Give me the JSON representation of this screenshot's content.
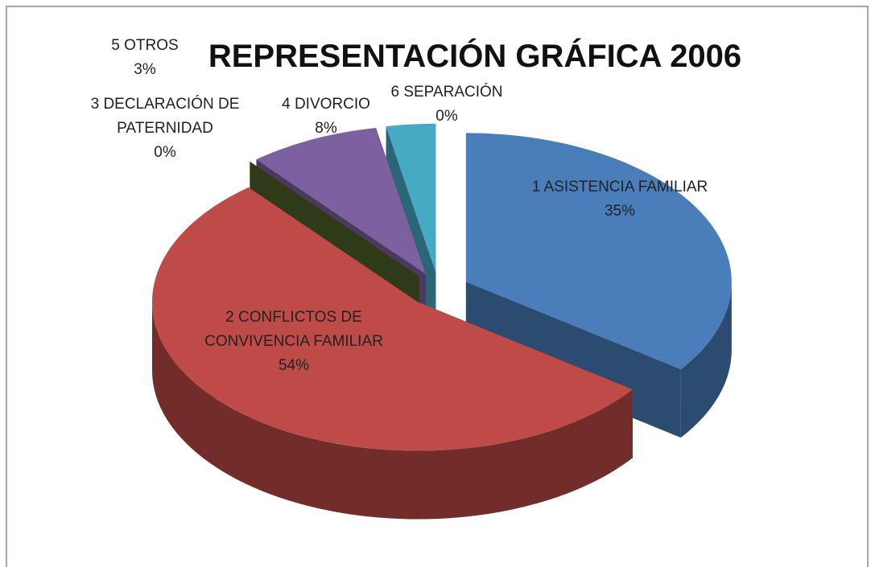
{
  "chart_data": {
    "type": "pie3d",
    "title": "REPRESENTACIÓN GRÁFICA 2006",
    "categories": [
      "1 ASISTENCIA FAMILIAR",
      "2 CONFLICTOS DE CONVIVENCIA FAMILIAR",
      "3 DECLARACIÓN DE PATERNIDAD",
      "4 DIVORCIO",
      "5 OTROS",
      "6 SEPARACIÓN"
    ],
    "values": [
      35,
      54,
      0,
      8,
      3,
      0
    ],
    "value_labels": [
      "35%",
      "54%",
      "0%",
      "8%",
      "3%",
      "0%"
    ],
    "colors": [
      "#4a7ebb",
      "#be4b48",
      "#4f6228",
      "#7d60a0",
      "#46aac5",
      "#f79646"
    ]
  }
}
